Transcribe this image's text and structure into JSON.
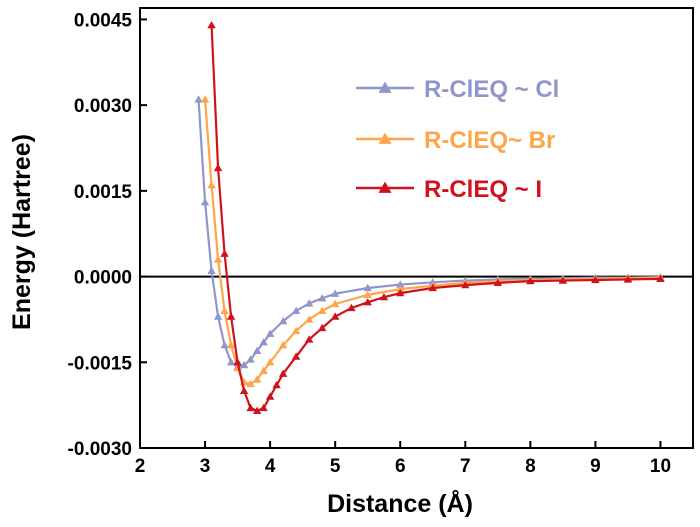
{
  "chart_data": {
    "type": "line",
    "xlabel": "Distance (Å)",
    "ylabel": "Energy (Hartree)",
    "xlim": [
      2,
      10.5
    ],
    "ylim": [
      -0.003,
      0.0047
    ],
    "xticks": [
      2,
      3,
      4,
      5,
      6,
      7,
      8,
      9,
      10
    ],
    "xtick_labels": [
      "2",
      "3",
      "4",
      "5",
      "6",
      "7",
      "8",
      "9",
      "10"
    ],
    "yticks": [
      -0.003,
      -0.0015,
      0.0,
      0.0015,
      0.003,
      0.0045
    ],
    "ytick_labels": [
      "-0.0030",
      "-0.0015",
      "0.0000",
      "0.0015",
      "0.0030",
      "0.0045"
    ],
    "zero_line": true,
    "legend_position": "upper-right",
    "series": [
      {
        "name": "R-ClEQ ~ Cl",
        "color": "#8f96cc",
        "marker": "triangle",
        "x": [
          2.9,
          3.0,
          3.1,
          3.2,
          3.3,
          3.4,
          3.5,
          3.6,
          3.7,
          3.8,
          3.9,
          4.0,
          4.2,
          4.4,
          4.6,
          4.8,
          5.0,
          5.5,
          6.0,
          6.5,
          7.0,
          7.5,
          8.0,
          8.5,
          9.0,
          9.5,
          10.0
        ],
        "y": [
          0.0031,
          0.0013,
          0.0001,
          -0.0007,
          -0.0012,
          -0.0015,
          -0.00158,
          -0.00155,
          -0.00145,
          -0.0013,
          -0.00115,
          -0.001,
          -0.00078,
          -0.0006,
          -0.00047,
          -0.00038,
          -0.0003,
          -0.0002,
          -0.00014,
          -0.0001,
          -7e-05,
          -5e-05,
          -4e-05,
          -3e-05,
          -2e-05,
          -2e-05,
          -1e-05
        ]
      },
      {
        "name": "R-ClEQ~ Br",
        "color": "#fea54a",
        "marker": "triangle",
        "x": [
          3.0,
          3.1,
          3.2,
          3.3,
          3.4,
          3.5,
          3.6,
          3.7,
          3.8,
          3.9,
          4.0,
          4.2,
          4.4,
          4.6,
          4.8,
          5.0,
          5.5,
          6.0,
          6.5,
          7.0,
          7.5,
          8.0,
          8.5,
          9.0,
          9.5,
          10.0
        ],
        "y": [
          0.0031,
          0.0016,
          0.0003,
          -0.0006,
          -0.0012,
          -0.0016,
          -0.00185,
          -0.00188,
          -0.0018,
          -0.00165,
          -0.0015,
          -0.0012,
          -0.00095,
          -0.00075,
          -0.0006,
          -0.00048,
          -0.00032,
          -0.00022,
          -0.00016,
          -0.00011,
          -8e-05,
          -6e-05,
          -5e-05,
          -4e-05,
          -3e-05,
          -2e-05
        ]
      },
      {
        "name": "R-ClEQ ~ I",
        "color": "#d0121c",
        "marker": "triangle",
        "x": [
          3.1,
          3.2,
          3.3,
          3.4,
          3.5,
          3.6,
          3.7,
          3.8,
          3.9,
          4.0,
          4.1,
          4.2,
          4.4,
          4.6,
          4.8,
          5.0,
          5.25,
          5.5,
          5.75,
          6.0,
          6.5,
          7.0,
          7.5,
          8.0,
          8.5,
          9.0,
          9.5,
          10.0
        ],
        "y": [
          0.0044,
          0.0019,
          0.0004,
          -0.0007,
          -0.0015,
          -0.002,
          -0.0023,
          -0.00235,
          -0.0023,
          -0.0021,
          -0.0019,
          -0.0017,
          -0.0014,
          -0.0011,
          -0.0009,
          -0.0007,
          -0.00055,
          -0.00045,
          -0.00036,
          -0.00029,
          -0.0002,
          -0.00015,
          -0.00011,
          -8e-05,
          -7e-05,
          -6e-05,
          -5e-05,
          -4e-05
        ]
      }
    ]
  }
}
